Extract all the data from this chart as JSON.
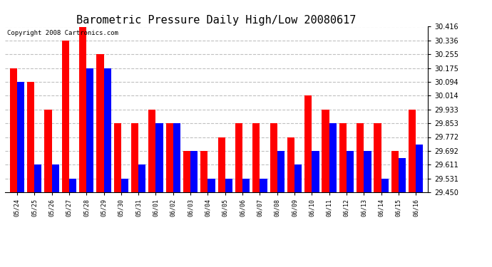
{
  "title": "Barometric Pressure Daily High/Low 20080617",
  "copyright": "Copyright 2008 Cartronics.com",
  "categories": [
    "05/24",
    "05/25",
    "05/26",
    "05/27",
    "05/28",
    "05/29",
    "05/30",
    "05/31",
    "06/01",
    "06/02",
    "06/03",
    "06/04",
    "06/05",
    "06/06",
    "06/07",
    "06/08",
    "06/09",
    "06/10",
    "06/11",
    "06/12",
    "06/13",
    "06/14",
    "06/15",
    "06/16"
  ],
  "highs": [
    30.175,
    30.094,
    29.933,
    30.336,
    30.416,
    30.255,
    29.853,
    29.853,
    29.933,
    29.853,
    29.692,
    29.692,
    29.772,
    29.853,
    29.853,
    29.853,
    29.772,
    30.014,
    29.933,
    29.853,
    29.853,
    29.853,
    29.692,
    29.933
  ],
  "lows": [
    30.094,
    29.611,
    29.611,
    29.531,
    30.175,
    30.175,
    29.531,
    29.611,
    29.853,
    29.853,
    29.692,
    29.531,
    29.531,
    29.531,
    29.531,
    29.692,
    29.611,
    29.692,
    29.853,
    29.692,
    29.692,
    29.531,
    29.65,
    29.73
  ],
  "ymin": 29.45,
  "ymax": 30.416,
  "yticks": [
    29.45,
    29.531,
    29.611,
    29.692,
    29.772,
    29.853,
    29.933,
    30.014,
    30.094,
    30.175,
    30.255,
    30.336,
    30.416
  ],
  "high_color": "#ff0000",
  "low_color": "#0000ff",
  "bg_color": "#ffffff",
  "plot_bg_color": "#ffffff",
  "grid_color": "#c0c0c0",
  "title_fontsize": 11,
  "copyright_fontsize": 6.5
}
